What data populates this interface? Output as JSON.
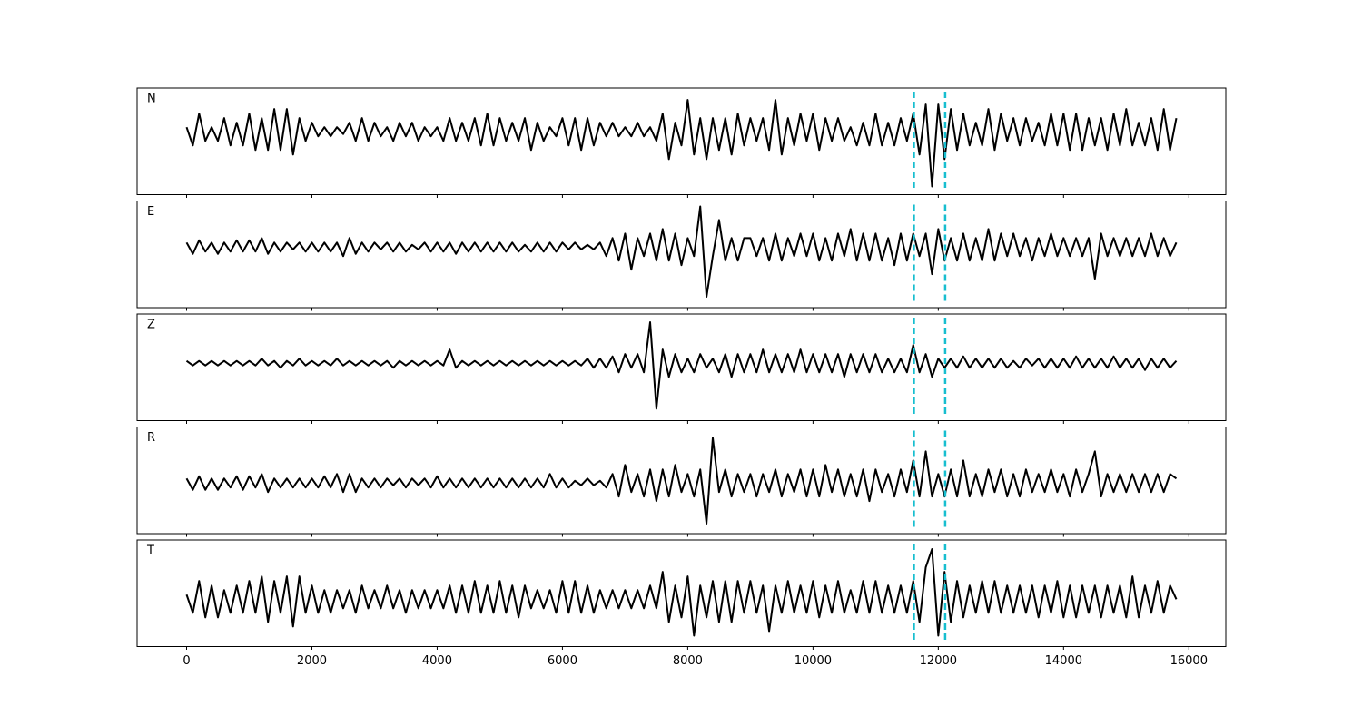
{
  "chart_data": {
    "type": "line",
    "stacked_panels": true,
    "x": [
      0,
      100,
      200,
      300,
      400,
      500,
      600,
      700,
      800,
      900,
      1000,
      1100,
      1200,
      1300,
      1400,
      1500,
      1600,
      1700,
      1800,
      1900,
      2000,
      2100,
      2200,
      2300,
      2400,
      2500,
      2600,
      2700,
      2800,
      2900,
      3000,
      3100,
      3200,
      3300,
      3400,
      3500,
      3600,
      3700,
      3800,
      3900,
      4000,
      4100,
      4200,
      4300,
      4400,
      4500,
      4600,
      4700,
      4800,
      4900,
      5000,
      5100,
      5200,
      5300,
      5400,
      5500,
      5600,
      5700,
      5800,
      5900,
      6000,
      6100,
      6200,
      6300,
      6400,
      6500,
      6600,
      6700,
      6800,
      6900,
      7000,
      7100,
      7200,
      7300,
      7400,
      7500,
      7600,
      7700,
      7800,
      7900,
      8000,
      8100,
      8200,
      8300,
      8400,
      8500,
      8600,
      8700,
      8800,
      8900,
      9000,
      9100,
      9200,
      9300,
      9400,
      9500,
      9600,
      9700,
      9800,
      9900,
      10000,
      10100,
      10200,
      10300,
      10400,
      10500,
      10600,
      10700,
      10800,
      10900,
      11000,
      11100,
      11200,
      11300,
      11400,
      11500,
      11600,
      11700,
      11800,
      11900,
      12000,
      12100,
      12200,
      12300,
      12400,
      12500,
      12600,
      12700,
      12800,
      12900,
      13000,
      13100,
      13200,
      13300,
      13400,
      13500,
      13600,
      13700,
      13800,
      13900,
      14000,
      14100,
      14200,
      14300,
      14400,
      14500,
      14600,
      14700,
      14800,
      14900,
      15000,
      15100,
      15200,
      15300,
      15400,
      15500,
      15600,
      15700,
      15800
    ],
    "xlim": [
      -790,
      16590
    ],
    "xticks": [
      0,
      2000,
      4000,
      6000,
      8000,
      10000,
      12000,
      14000,
      16000
    ],
    "vlines": [
      11610,
      12110
    ],
    "vline_color": "#17becf",
    "series": [
      {
        "name": "N",
        "color": "#000000",
        "ylim": [
          -1.38,
          0.96
        ],
        "values": [
          0.1,
          -0.3,
          0.4,
          -0.2,
          0.1,
          -0.2,
          0.3,
          -0.3,
          0.2,
          -0.3,
          0.4,
          -0.4,
          0.3,
          -0.4,
          0.5,
          -0.4,
          0.5,
          -0.5,
          0.3,
          -0.2,
          0.2,
          -0.1,
          0.1,
          -0.1,
          0.1,
          -0.05,
          0.2,
          -0.2,
          0.3,
          -0.2,
          0.2,
          -0.1,
          0.1,
          -0.2,
          0.2,
          -0.1,
          0.2,
          -0.2,
          0.1,
          -0.1,
          0.1,
          -0.2,
          0.3,
          -0.2,
          0.2,
          -0.2,
          0.3,
          -0.3,
          0.4,
          -0.3,
          0.3,
          -0.2,
          0.2,
          -0.2,
          0.3,
          -0.4,
          0.2,
          -0.2,
          0.1,
          -0.1,
          0.3,
          -0.3,
          0.3,
          -0.4,
          0.3,
          -0.3,
          0.2,
          -0.1,
          0.2,
          -0.1,
          0.1,
          -0.1,
          0.2,
          -0.1,
          0.1,
          -0.2,
          0.4,
          -0.6,
          0.2,
          -0.3,
          0.7,
          -0.5,
          0.3,
          -0.6,
          0.3,
          -0.4,
          0.3,
          -0.5,
          0.4,
          -0.3,
          0.3,
          -0.2,
          0.3,
          -0.4,
          0.7,
          -0.5,
          0.3,
          -0.3,
          0.4,
          -0.2,
          0.4,
          -0.4,
          0.3,
          -0.2,
          0.3,
          -0.2,
          0.1,
          -0.3,
          0.2,
          -0.3,
          0.4,
          -0.3,
          0.2,
          -0.3,
          0.3,
          -0.2,
          0.4,
          -0.5,
          0.6,
          -1.2,
          0.6,
          -0.6,
          0.5,
          -0.4,
          0.4,
          -0.3,
          0.2,
          -0.3,
          0.5,
          -0.4,
          0.4,
          -0.2,
          0.3,
          -0.3,
          0.3,
          -0.2,
          0.2,
          -0.3,
          0.4,
          -0.3,
          0.4,
          -0.4,
          0.4,
          -0.4,
          0.3,
          -0.3,
          0.3,
          -0.4,
          0.4,
          -0.3,
          0.5,
          -0.3,
          0.2,
          -0.3,
          0.3,
          -0.4,
          0.5,
          -0.4,
          0.3
        ]
      },
      {
        "name": "E",
        "color": "#000000",
        "ylim": [
          -1.34,
          1.02
        ],
        "values": [
          0.1,
          -0.15,
          0.15,
          -0.1,
          0.1,
          -0.15,
          0.1,
          -0.1,
          0.15,
          -0.1,
          0.15,
          -0.1,
          0.2,
          -0.15,
          0.1,
          -0.1,
          0.1,
          -0.05,
          0.1,
          -0.1,
          0.1,
          -0.1,
          0.1,
          -0.1,
          0.1,
          -0.2,
          0.2,
          -0.15,
          0.1,
          -0.1,
          0.1,
          -0.05,
          0.1,
          -0.1,
          0.1,
          -0.1,
          0.05,
          -0.05,
          0.1,
          -0.1,
          0.1,
          -0.1,
          0.1,
          -0.15,
          0.1,
          -0.1,
          0.1,
          -0.1,
          0.1,
          -0.1,
          0.1,
          -0.1,
          0.1,
          -0.1,
          0.05,
          -0.1,
          0.1,
          -0.1,
          0.1,
          -0.1,
          0.1,
          -0.05,
          0.1,
          -0.05,
          0.05,
          -0.05,
          0.1,
          -0.2,
          0.2,
          -0.3,
          0.3,
          -0.5,
          0.2,
          -0.2,
          0.3,
          -0.3,
          0.4,
          -0.3,
          0.3,
          -0.4,
          0.2,
          -0.2,
          0.9,
          -1.1,
          -0.2,
          0.6,
          -0.3,
          0.2,
          -0.3,
          0.2,
          0.2,
          -0.2,
          0.2,
          -0.3,
          0.3,
          -0.3,
          0.2,
          -0.2,
          0.3,
          -0.2,
          0.3,
          -0.3,
          0.2,
          -0.3,
          0.3,
          -0.2,
          0.4,
          -0.3,
          0.3,
          -0.3,
          0.3,
          -0.3,
          0.2,
          -0.4,
          0.3,
          -0.3,
          0.3,
          -0.2,
          0.3,
          -0.6,
          0.4,
          -0.3,
          0.2,
          -0.3,
          0.3,
          -0.3,
          0.2,
          -0.3,
          0.4,
          -0.3,
          0.3,
          -0.2,
          0.3,
          -0.2,
          0.2,
          -0.3,
          0.2,
          -0.2,
          0.3,
          -0.2,
          0.2,
          -0.2,
          0.2,
          -0.2,
          0.2,
          -0.7,
          0.3,
          -0.2,
          0.2,
          -0.2,
          0.2,
          -0.2,
          0.2,
          -0.2,
          0.3,
          -0.2,
          0.2,
          -0.2,
          0.1
        ]
      },
      {
        "name": "Z",
        "color": "#000000",
        "ylim": [
          -1.26,
          1.08
        ],
        "values": [
          0.05,
          -0.05,
          0.05,
          -0.05,
          0.05,
          -0.05,
          0.05,
          -0.05,
          0.05,
          -0.05,
          0.05,
          -0.05,
          0.1,
          -0.05,
          0.05,
          -0.1,
          0.05,
          -0.05,
          0.1,
          -0.05,
          0.05,
          -0.05,
          0.05,
          -0.05,
          0.1,
          -0.05,
          0.05,
          -0.05,
          0.05,
          -0.05,
          0.05,
          -0.05,
          0.05,
          -0.1,
          0.05,
          -0.05,
          0.05,
          -0.05,
          0.05,
          -0.05,
          0.05,
          -0.05,
          0.3,
          -0.1,
          0.05,
          -0.05,
          0.05,
          -0.05,
          0.05,
          -0.05,
          0.05,
          -0.05,
          0.05,
          -0.05,
          0.05,
          -0.05,
          0.05,
          -0.05,
          0.05,
          -0.05,
          0.05,
          -0.05,
          0.05,
          -0.05,
          0.1,
          -0.1,
          0.1,
          -0.1,
          0.15,
          -0.2,
          0.2,
          -0.1,
          0.2,
          -0.2,
          0.9,
          -1.0,
          0.3,
          -0.3,
          0.2,
          -0.2,
          0.1,
          -0.2,
          0.2,
          -0.1,
          0.1,
          -0.2,
          0.2,
          -0.3,
          0.2,
          -0.2,
          0.2,
          -0.2,
          0.3,
          -0.2,
          0.2,
          -0.2,
          0.2,
          -0.2,
          0.3,
          -0.2,
          0.2,
          -0.2,
          0.2,
          -0.2,
          0.2,
          -0.3,
          0.2,
          -0.2,
          0.2,
          -0.2,
          0.2,
          -0.2,
          0.1,
          -0.2,
          0.1,
          -0.2,
          0.4,
          -0.2,
          0.2,
          -0.3,
          0.1,
          -0.1,
          0.1,
          -0.1,
          0.15,
          -0.1,
          0.1,
          -0.1,
          0.1,
          -0.1,
          0.1,
          -0.1,
          0.05,
          -0.1,
          0.1,
          -0.05,
          0.1,
          -0.1,
          0.1,
          -0.1,
          0.1,
          -0.1,
          0.15,
          -0.1,
          0.1,
          -0.1,
          0.1,
          -0.1,
          0.15,
          -0.1,
          0.1,
          -0.1,
          0.1,
          -0.15,
          0.1,
          -0.1,
          0.1,
          -0.1,
          0.05
        ]
      },
      {
        "name": "R",
        "color": "#000000",
        "ylim": [
          -1.12,
          1.24
        ],
        "values": [
          0.1,
          -0.15,
          0.15,
          -0.15,
          0.1,
          -0.15,
          0.1,
          -0.1,
          0.15,
          -0.15,
          0.15,
          -0.1,
          0.2,
          -0.2,
          0.1,
          -0.1,
          0.1,
          -0.1,
          0.1,
          -0.1,
          0.1,
          -0.1,
          0.15,
          -0.1,
          0.2,
          -0.2,
          0.2,
          -0.2,
          0.1,
          -0.1,
          0.1,
          -0.1,
          0.1,
          -0.05,
          0.1,
          -0.1,
          0.1,
          -0.05,
          0.1,
          -0.1,
          0.15,
          -0.1,
          0.1,
          -0.1,
          0.1,
          -0.1,
          0.1,
          -0.1,
          0.1,
          -0.1,
          0.1,
          -0.1,
          0.1,
          -0.1,
          0.1,
          -0.1,
          0.1,
          -0.1,
          0.2,
          -0.1,
          0.1,
          -0.1,
          0.05,
          -0.05,
          0.1,
          -0.05,
          0.05,
          -0.1,
          0.2,
          -0.3,
          0.4,
          -0.2,
          0.2,
          -0.3,
          0.3,
          -0.4,
          0.3,
          -0.3,
          0.4,
          -0.2,
          0.2,
          -0.3,
          0.3,
          -0.9,
          1.0,
          -0.2,
          0.3,
          -0.3,
          0.2,
          -0.2,
          0.2,
          -0.3,
          0.2,
          -0.2,
          0.3,
          -0.3,
          0.2,
          -0.2,
          0.3,
          -0.3,
          0.3,
          -0.3,
          0.4,
          -0.2,
          0.3,
          -0.3,
          0.2,
          -0.3,
          0.3,
          -0.4,
          0.3,
          -0.2,
          0.2,
          -0.3,
          0.3,
          -0.2,
          0.5,
          -0.3,
          0.7,
          -0.3,
          0.2,
          -0.3,
          0.3,
          -0.3,
          0.5,
          -0.3,
          0.2,
          -0.3,
          0.3,
          -0.2,
          0.3,
          -0.3,
          0.2,
          -0.3,
          0.3,
          -0.2,
          0.2,
          -0.2,
          0.3,
          -0.2,
          0.2,
          -0.3,
          0.3,
          -0.2,
          0.2,
          0.7,
          -0.3,
          0.2,
          -0.2,
          0.2,
          -0.2,
          0.2,
          -0.2,
          0.2,
          -0.2,
          0.2,
          -0.2,
          0.2,
          0.1
        ]
      },
      {
        "name": "T",
        "color": "#000000",
        "ylim": [
          -1.04,
          1.3
        ],
        "values": [
          0.1,
          -0.3,
          0.4,
          -0.4,
          0.3,
          -0.4,
          0.2,
          -0.3,
          0.3,
          -0.3,
          0.4,
          -0.3,
          0.5,
          -0.5,
          0.4,
          -0.3,
          0.5,
          -0.6,
          0.5,
          -0.3,
          0.3,
          -0.3,
          0.2,
          -0.3,
          0.2,
          -0.2,
          0.2,
          -0.3,
          0.3,
          -0.2,
          0.2,
          -0.2,
          0.3,
          -0.2,
          0.2,
          -0.3,
          0.2,
          -0.2,
          0.2,
          -0.2,
          0.2,
          -0.2,
          0.3,
          -0.3,
          0.3,
          -0.3,
          0.4,
          -0.3,
          0.3,
          -0.3,
          0.4,
          -0.3,
          0.3,
          -0.4,
          0.3,
          -0.2,
          0.2,
          -0.2,
          0.2,
          -0.3,
          0.4,
          -0.3,
          0.4,
          -0.3,
          0.3,
          -0.3,
          0.2,
          -0.2,
          0.2,
          -0.2,
          0.2,
          -0.2,
          0.2,
          -0.2,
          0.3,
          -0.2,
          0.6,
          -0.5,
          0.3,
          -0.4,
          0.5,
          -0.8,
          0.3,
          -0.4,
          0.4,
          -0.5,
          0.4,
          -0.5,
          0.4,
          -0.3,
          0.4,
          -0.3,
          0.3,
          -0.7,
          0.3,
          -0.3,
          0.4,
          -0.3,
          0.3,
          -0.3,
          0.4,
          -0.4,
          0.3,
          -0.3,
          0.4,
          -0.3,
          0.2,
          -0.3,
          0.4,
          -0.3,
          0.4,
          -0.3,
          0.3,
          -0.3,
          0.3,
          -0.3,
          0.4,
          -0.5,
          0.7,
          1.1,
          -0.8,
          0.6,
          -0.5,
          0.4,
          -0.4,
          0.3,
          -0.3,
          0.4,
          -0.3,
          0.4,
          -0.3,
          0.3,
          -0.3,
          0.3,
          -0.3,
          0.3,
          -0.4,
          0.3,
          -0.3,
          0.4,
          -0.4,
          0.3,
          -0.4,
          0.3,
          -0.3,
          0.3,
          -0.4,
          0.3,
          -0.3,
          0.3,
          -0.4,
          0.5,
          -0.4,
          0.3,
          -0.3,
          0.4,
          -0.3,
          0.3,
          0.0
        ]
      }
    ]
  }
}
